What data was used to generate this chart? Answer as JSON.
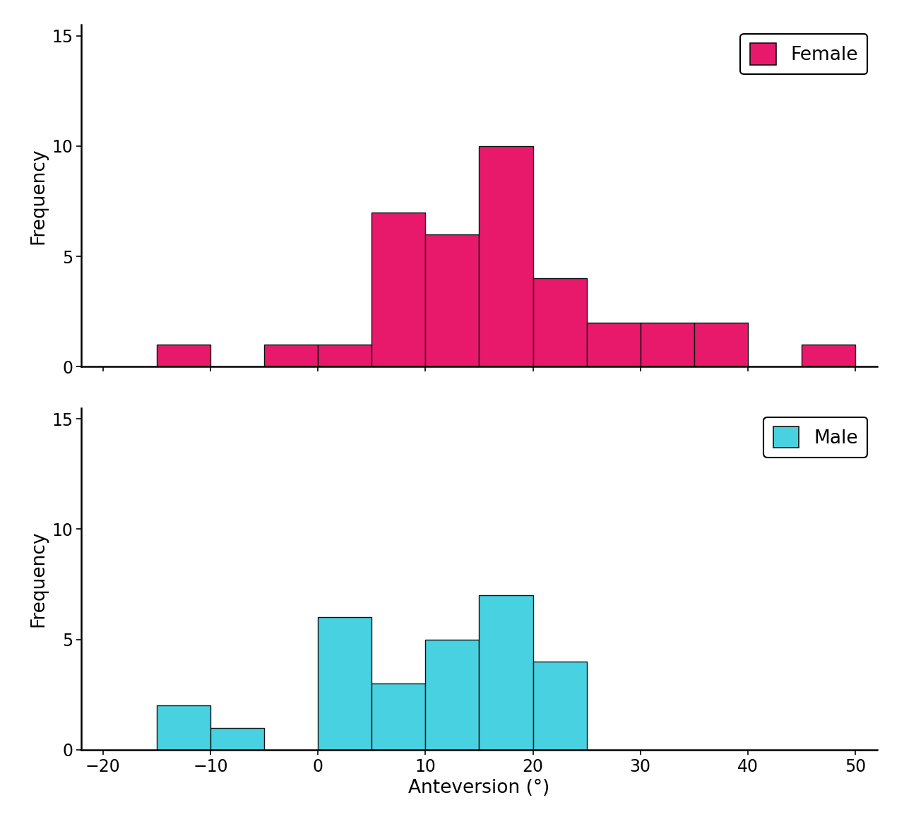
{
  "female_bins": [
    -15,
    -5,
    0,
    5,
    10,
    15,
    20,
    25,
    30,
    35,
    45
  ],
  "female_heights": [
    1,
    1,
    1,
    7,
    6,
    10,
    4,
    2,
    2,
    2,
    1
  ],
  "male_bins": [
    -15,
    -10,
    0,
    5,
    10,
    15,
    20
  ],
  "male_heights": [
    2,
    1,
    6,
    3,
    5,
    7,
    4
  ],
  "female_color": "#E8186A",
  "male_color": "#48D1E0",
  "bar_edge_color": "#111111",
  "xlim": [
    -22,
    52
  ],
  "ylim": [
    0,
    15.5
  ],
  "xticks": [
    -20,
    -10,
    0,
    10,
    20,
    30,
    40,
    50
  ],
  "yticks": [
    0,
    5,
    10,
    15
  ],
  "xlabel": "Anteversion (°)",
  "ylabel": "Frequency",
  "female_label": "Female",
  "male_label": "Male",
  "bin_width": 5,
  "background_color": "#ffffff",
  "tick_fontsize": 17,
  "label_fontsize": 19,
  "legend_fontsize": 19,
  "spine_linewidth": 1.8,
  "bar_linewidth": 1.0
}
